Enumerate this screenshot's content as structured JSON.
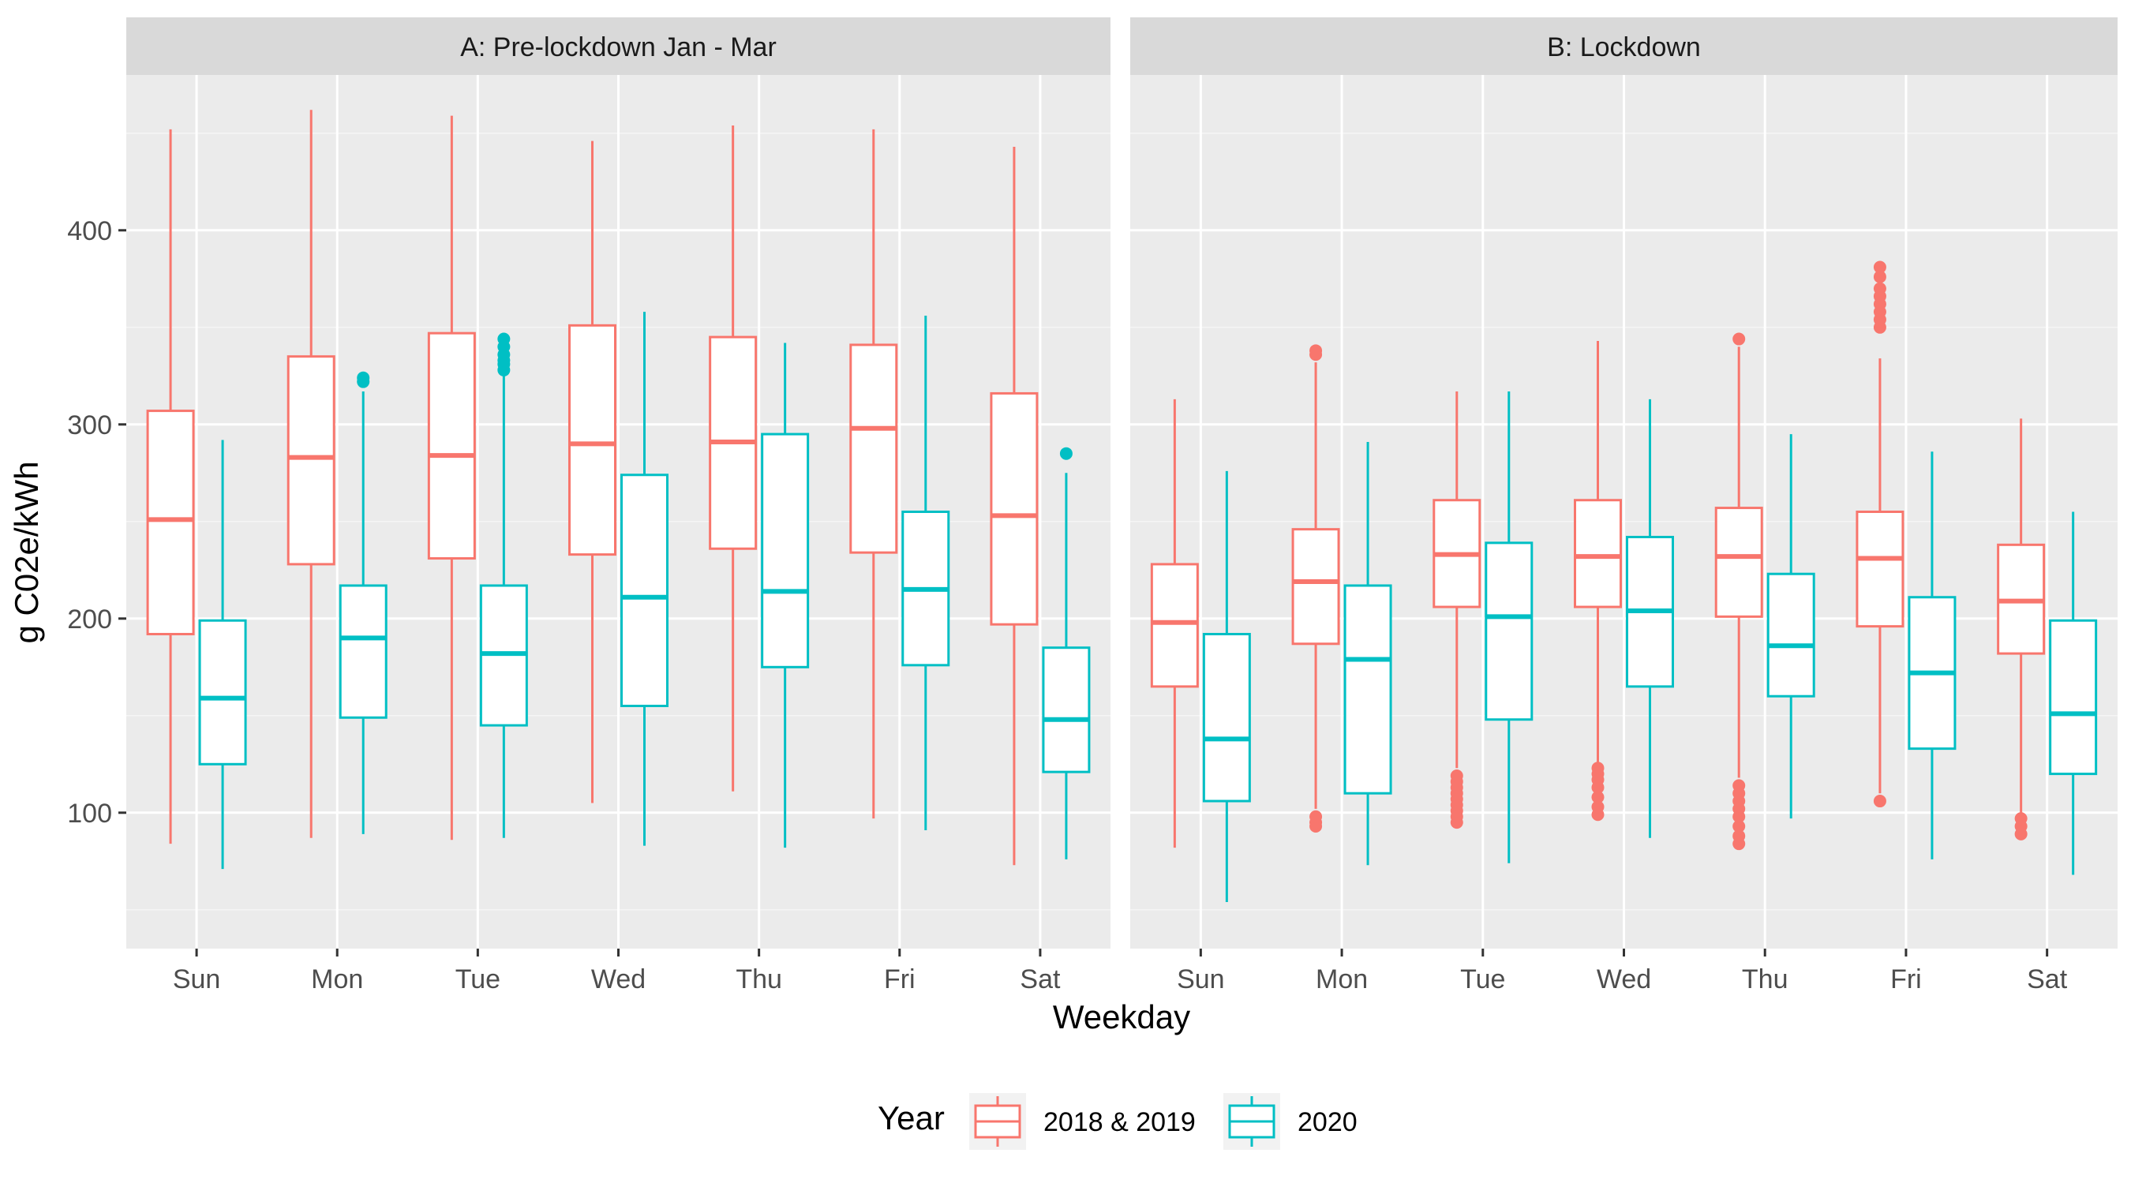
{
  "chart_data": {
    "type": "boxplot",
    "xlabel": "Weekday",
    "ylabel": "g C02e/kWh",
    "categories": [
      "Sun",
      "Mon",
      "Tue",
      "Wed",
      "Thu",
      "Fri",
      "Sat"
    ],
    "yticks": [
      100,
      200,
      300,
      400
    ],
    "ylim": [
      30,
      480
    ],
    "grid": true,
    "legend": {
      "title": "Year",
      "position": "bottom",
      "entries": [
        {
          "name": "2018 & 2019",
          "color": "#F8766D"
        },
        {
          "name": "2020",
          "color": "#00BFC4"
        }
      ]
    },
    "panels": [
      {
        "title": "A: Pre-lockdown Jan - Mar",
        "series": [
          {
            "name": "2018 & 2019",
            "boxes": [
              {
                "min": 84,
                "q1": 192,
                "median": 251,
                "q3": 307,
                "max": 452,
                "outliers": []
              },
              {
                "min": 87,
                "q1": 228,
                "median": 283,
                "q3": 335,
                "max": 462,
                "outliers": []
              },
              {
                "min": 86,
                "q1": 231,
                "median": 284,
                "q3": 347,
                "max": 459,
                "outliers": []
              },
              {
                "min": 105,
                "q1": 233,
                "median": 290,
                "q3": 351,
                "max": 446,
                "outliers": []
              },
              {
                "min": 111,
                "q1": 236,
                "median": 291,
                "q3": 345,
                "max": 454,
                "outliers": []
              },
              {
                "min": 97,
                "q1": 234,
                "median": 298,
                "q3": 341,
                "max": 452,
                "outliers": []
              },
              {
                "min": 73,
                "q1": 197,
                "median": 253,
                "q3": 316,
                "max": 443,
                "outliers": []
              }
            ]
          },
          {
            "name": "2020",
            "boxes": [
              {
                "min": 71,
                "q1": 125,
                "median": 159,
                "q3": 199,
                "max": 292,
                "outliers": []
              },
              {
                "min": 89,
                "q1": 149,
                "median": 190,
                "q3": 217,
                "max": 317,
                "outliers": [
                  322,
                  324
                ]
              },
              {
                "min": 87,
                "q1": 145,
                "median": 182,
                "q3": 217,
                "max": 325,
                "outliers": [
                  328,
                  331,
                  333,
                  336,
                  340,
                  344
                ]
              },
              {
                "min": 83,
                "q1": 155,
                "median": 211,
                "q3": 274,
                "max": 358,
                "outliers": []
              },
              {
                "min": 82,
                "q1": 175,
                "median": 214,
                "q3": 295,
                "max": 342,
                "outliers": []
              },
              {
                "min": 91,
                "q1": 176,
                "median": 215,
                "q3": 255,
                "max": 356,
                "outliers": []
              },
              {
                "min": 76,
                "q1": 121,
                "median": 148,
                "q3": 185,
                "max": 275,
                "outliers": [
                  285
                ]
              }
            ]
          }
        ]
      },
      {
        "title": "B: Lockdown",
        "series": [
          {
            "name": "2018 & 2019",
            "boxes": [
              {
                "min": 82,
                "q1": 165,
                "median": 198,
                "q3": 228,
                "max": 313,
                "outliers": []
              },
              {
                "min": 102,
                "q1": 187,
                "median": 219,
                "q3": 246,
                "max": 332,
                "outliers": [
                  93,
                  95,
                  98,
                  336,
                  338
                ]
              },
              {
                "min": 123,
                "q1": 206,
                "median": 233,
                "q3": 261,
                "max": 317,
                "outliers": [
                  95,
                  98,
                  101,
                  104,
                  107,
                  110,
                  113,
                  116,
                  119
                ]
              },
              {
                "min": 125,
                "q1": 206,
                "median": 232,
                "q3": 261,
                "max": 343,
                "outliers": [
                  99,
                  103,
                  108,
                  113,
                  117,
                  120,
                  123
                ]
              },
              {
                "min": 118,
                "q1": 201,
                "median": 232,
                "q3": 257,
                "max": 340,
                "outliers": [
                  84,
                  88,
                  93,
                  98,
                  102,
                  106,
                  110,
                  114,
                  344
                ]
              },
              {
                "min": 110,
                "q1": 196,
                "median": 231,
                "q3": 255,
                "max": 334,
                "outliers": [
                  106,
                  350,
                  354,
                  358,
                  362,
                  366,
                  370,
                  376,
                  381
                ]
              },
              {
                "min": 100,
                "q1": 182,
                "median": 209,
                "q3": 238,
                "max": 303,
                "outliers": [
                  89,
                  93,
                  97
                ]
              }
            ]
          },
          {
            "name": "2020",
            "boxes": [
              {
                "min": 54,
                "q1": 106,
                "median": 138,
                "q3": 192,
                "max": 276,
                "outliers": []
              },
              {
                "min": 73,
                "q1": 110,
                "median": 179,
                "q3": 217,
                "max": 291,
                "outliers": []
              },
              {
                "min": 74,
                "q1": 148,
                "median": 201,
                "q3": 239,
                "max": 317,
                "outliers": []
              },
              {
                "min": 87,
                "q1": 165,
                "median": 204,
                "q3": 242,
                "max": 313,
                "outliers": []
              },
              {
                "min": 97,
                "q1": 160,
                "median": 186,
                "q3": 223,
                "max": 295,
                "outliers": []
              },
              {
                "min": 76,
                "q1": 133,
                "median": 172,
                "q3": 211,
                "max": 286,
                "outliers": []
              },
              {
                "min": 68,
                "q1": 120,
                "median": 151,
                "q3": 199,
                "max": 255,
                "outliers": []
              }
            ]
          }
        ]
      }
    ]
  }
}
